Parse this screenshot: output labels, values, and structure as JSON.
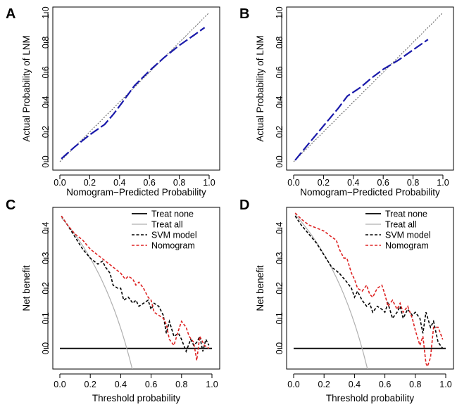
{
  "chart_data": [
    {
      "id": "A",
      "type": "line",
      "panel_label": "A",
      "xlabel": "Nomogram−Predicted Probability",
      "ylabel": "Actual Probability of LNM",
      "xlim": [
        0,
        1
      ],
      "ylim": [
        0,
        1
      ],
      "xticks": [
        "0.0",
        "0.2",
        "0.4",
        "0.6",
        "0.8",
        "1.0"
      ],
      "yticks": [
        "0.0",
        "0.2",
        "0.4",
        "0.6",
        "0.8",
        "1.0"
      ],
      "series": [
        {
          "name": "Ideal",
          "style": "dotted",
          "color": "#555555",
          "x": [
            0,
            1
          ],
          "y": [
            0,
            1
          ]
        },
        {
          "name": "Calibration",
          "style": "dashed",
          "color": "#1a1aaa",
          "x": [
            0.01,
            0.1,
            0.2,
            0.3,
            0.36,
            0.42,
            0.5,
            0.6,
            0.7,
            0.8,
            0.9,
            0.97
          ],
          "y": [
            0.02,
            0.1,
            0.18,
            0.25,
            0.32,
            0.4,
            0.51,
            0.61,
            0.7,
            0.78,
            0.85,
            0.9
          ]
        }
      ]
    },
    {
      "id": "B",
      "type": "line",
      "panel_label": "B",
      "xlabel": "Nomogram−Predicted Probability",
      "ylabel": "Actual Probability of LNM",
      "xlim": [
        0,
        1
      ],
      "ylim": [
        0,
        1
      ],
      "xticks": [
        "0.0",
        "0.2",
        "0.4",
        "0.6",
        "0.8",
        "1.0"
      ],
      "yticks": [
        "0.0",
        "0.2",
        "0.4",
        "0.6",
        "0.8",
        "1.0"
      ],
      "series": [
        {
          "name": "Ideal",
          "style": "dotted",
          "color": "#555555",
          "x": [
            0,
            1
          ],
          "y": [
            0,
            1
          ]
        },
        {
          "name": "Calibration",
          "style": "dashed",
          "color": "#1a1aaa",
          "x": [
            0.01,
            0.1,
            0.2,
            0.3,
            0.36,
            0.45,
            0.52,
            0.6,
            0.7,
            0.8,
            0.9
          ],
          "y": [
            0.01,
            0.12,
            0.24,
            0.36,
            0.44,
            0.5,
            0.56,
            0.62,
            0.68,
            0.75,
            0.82
          ]
        }
      ]
    },
    {
      "id": "C",
      "type": "line",
      "panel_label": "C",
      "xlabel": "Threshold probability",
      "ylabel": "Net benefit",
      "xlim": [
        0,
        1
      ],
      "ylim": [
        -0.05,
        0.45
      ],
      "xticks": [
        "0.0",
        "0.2",
        "0.4",
        "0.6",
        "0.8",
        "1.0"
      ],
      "yticks": [
        "0.0",
        "0.1",
        "0.2",
        "0.3",
        "0.4"
      ],
      "legend": {
        "position": "top-right",
        "entries": [
          "Treat none",
          "Treat all",
          "SVM model",
          "Nomogram"
        ]
      },
      "series": [
        {
          "name": "Treat none",
          "style": "solid",
          "color": "#000000",
          "x": [
            0,
            1
          ],
          "y": [
            0,
            0
          ]
        },
        {
          "name": "Treat all",
          "style": "solid",
          "color": "#b0b0b0",
          "prevalence": 0.44
        },
        {
          "name": "SVM model",
          "style": "dashed",
          "color": "#000000",
          "x": [
            0.01,
            0.05,
            0.1,
            0.15,
            0.2,
            0.25,
            0.28,
            0.3,
            0.33,
            0.35,
            0.38,
            0.4,
            0.42,
            0.45,
            0.48,
            0.5,
            0.52,
            0.55,
            0.58,
            0.6,
            0.62,
            0.65,
            0.68,
            0.7,
            0.72,
            0.75,
            0.78,
            0.8,
            0.83,
            0.86,
            0.88,
            0.9,
            0.92,
            0.94,
            0.96,
            0.98
          ],
          "y": [
            0.44,
            0.41,
            0.37,
            0.33,
            0.3,
            0.28,
            0.29,
            0.27,
            0.25,
            0.21,
            0.2,
            0.2,
            0.16,
            0.17,
            0.15,
            0.16,
            0.14,
            0.15,
            0.16,
            0.13,
            0.15,
            0.14,
            0.11,
            0.05,
            0.09,
            0.04,
            0.05,
            0.03,
            -0.01,
            0.03,
            0.01,
            0.02,
            0.04,
            -0.01,
            0.03,
            0.01
          ]
        },
        {
          "name": "Nomogram",
          "style": "dashed",
          "color": "#dd2222",
          "x": [
            0.01,
            0.05,
            0.1,
            0.15,
            0.2,
            0.25,
            0.3,
            0.35,
            0.4,
            0.43,
            0.45,
            0.48,
            0.5,
            0.52,
            0.55,
            0.58,
            0.6,
            0.62,
            0.65,
            0.68,
            0.7,
            0.72,
            0.75,
            0.78,
            0.8,
            0.83,
            0.85,
            0.88,
            0.9,
            0.92,
            0.95,
            0.98
          ],
          "y": [
            0.44,
            0.41,
            0.38,
            0.36,
            0.33,
            0.31,
            0.29,
            0.27,
            0.25,
            0.23,
            0.24,
            0.23,
            0.21,
            0.22,
            0.2,
            0.17,
            0.16,
            0.12,
            0.11,
            0.1,
            0.08,
            0.03,
            0.01,
            0.06,
            0.09,
            0.07,
            0.04,
            0.02,
            -0.04,
            0.04,
            0.01,
            0.0
          ]
        }
      ]
    },
    {
      "id": "D",
      "type": "line",
      "panel_label": "D",
      "xlabel": "Threshold probability",
      "ylabel": "Net benefit",
      "xlim": [
        0,
        1
      ],
      "ylim": [
        -0.05,
        0.45
      ],
      "xticks": [
        "0.0",
        "0.2",
        "0.4",
        "0.6",
        "0.8",
        "1.0"
      ],
      "yticks": [
        "0.0",
        "0.1",
        "0.2",
        "0.3",
        "0.4"
      ],
      "legend": {
        "position": "top-right",
        "entries": [
          "Treat none",
          "Treat all",
          "SVM model",
          "Nomogram"
        ]
      },
      "series": [
        {
          "name": "Treat none",
          "style": "solid",
          "color": "#000000",
          "x": [
            0,
            1
          ],
          "y": [
            0,
            0
          ]
        },
        {
          "name": "Treat all",
          "style": "solid",
          "color": "#b0b0b0",
          "prevalence": 0.45
        },
        {
          "name": "SVM model",
          "style": "dashed",
          "color": "#000000",
          "x": [
            0.01,
            0.05,
            0.1,
            0.15,
            0.2,
            0.25,
            0.3,
            0.35,
            0.38,
            0.4,
            0.42,
            0.45,
            0.48,
            0.5,
            0.52,
            0.55,
            0.58,
            0.6,
            0.62,
            0.65,
            0.68,
            0.7,
            0.72,
            0.75,
            0.78,
            0.8,
            0.83,
            0.85,
            0.87,
            0.9,
            0.92,
            0.95,
            0.98
          ],
          "y": [
            0.44,
            0.41,
            0.38,
            0.35,
            0.31,
            0.27,
            0.25,
            0.22,
            0.2,
            0.17,
            0.19,
            0.16,
            0.14,
            0.15,
            0.12,
            0.14,
            0.13,
            0.12,
            0.15,
            0.1,
            0.12,
            0.14,
            0.1,
            0.13,
            0.11,
            0.12,
            0.1,
            0.05,
            0.12,
            0.07,
            0.09,
            0.02,
            0.0
          ]
        },
        {
          "name": "Nomogram",
          "style": "dashed",
          "color": "#dd2222",
          "x": [
            0.01,
            0.05,
            0.1,
            0.15,
            0.2,
            0.25,
            0.28,
            0.3,
            0.33,
            0.35,
            0.38,
            0.4,
            0.42,
            0.45,
            0.48,
            0.5,
            0.52,
            0.55,
            0.58,
            0.6,
            0.62,
            0.65,
            0.68,
            0.7,
            0.72,
            0.75,
            0.78,
            0.8,
            0.83,
            0.85,
            0.87,
            0.88,
            0.9,
            0.92,
            0.95,
            0.98
          ],
          "y": [
            0.45,
            0.43,
            0.41,
            0.4,
            0.39,
            0.37,
            0.36,
            0.33,
            0.3,
            0.3,
            0.25,
            0.23,
            0.2,
            0.19,
            0.21,
            0.18,
            0.17,
            0.2,
            0.21,
            0.18,
            0.14,
            0.16,
            0.13,
            0.15,
            0.12,
            0.14,
            0.1,
            0.06,
            0.01,
            0.04,
            -0.05,
            -0.06,
            -0.03,
            0.07,
            0.07,
            0.03
          ]
        }
      ]
    }
  ]
}
